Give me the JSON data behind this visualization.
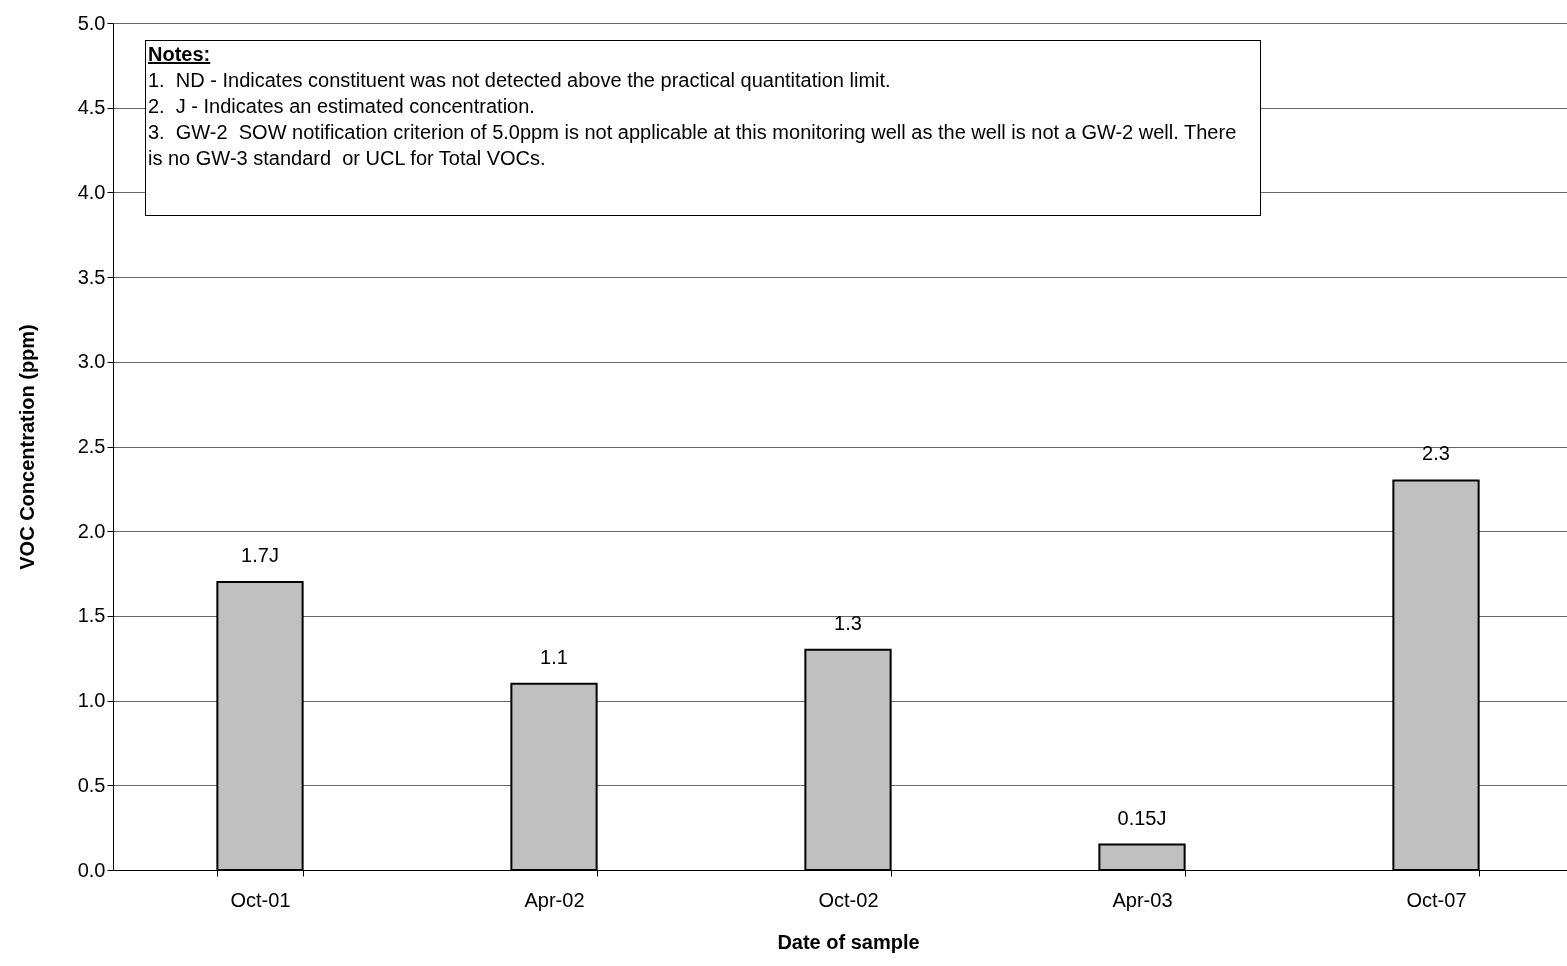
{
  "chart_data": {
    "type": "bar",
    "xlabel": "Date of sample",
    "ylabel": "VOC Concentration (ppm)",
    "categories": [
      "Oct-01",
      "Apr-02",
      "Oct-02",
      "Apr-03",
      "Oct-07"
    ],
    "values": [
      1.7,
      1.1,
      1.3,
      0.15,
      2.3
    ],
    "value_labels": [
      "1.7J",
      "1.1",
      "1.3",
      "0.15J",
      "2.3"
    ],
    "color": "#c0c0c0",
    "ylim": [
      0,
      5
    ],
    "yticks": [
      {
        "value": 0,
        "label": "0.0"
      },
      {
        "value": 0.5,
        "label": "0.5"
      },
      {
        "value": 1,
        "label": "1.0"
      },
      {
        "value": 1.5,
        "label": "1.5"
      },
      {
        "value": 2,
        "label": "2.0"
      },
      {
        "value": 2.5,
        "label": "2.5"
      },
      {
        "value": 3,
        "label": "3.0"
      },
      {
        "value": 3.5,
        "label": "3.5"
      },
      {
        "value": 4,
        "label": "4.0"
      },
      {
        "value": 4.5,
        "label": "4.5"
      },
      {
        "value": 5,
        "label": "5.0"
      }
    ],
    "grid": "y",
    "annotations": [
      "Notes:",
      "1.  ND - Indicates constituent was not detected above the practical quantitation limit.",
      "2.  J - Indicates an estimated concentration.",
      "3.  GW-2  SOW notification criterion of 5.0ppm is not applicable at this monitoring well as the well is not a GW-2 well. There is no GW-3 standard  or UCL for Total VOCs."
    ]
  }
}
